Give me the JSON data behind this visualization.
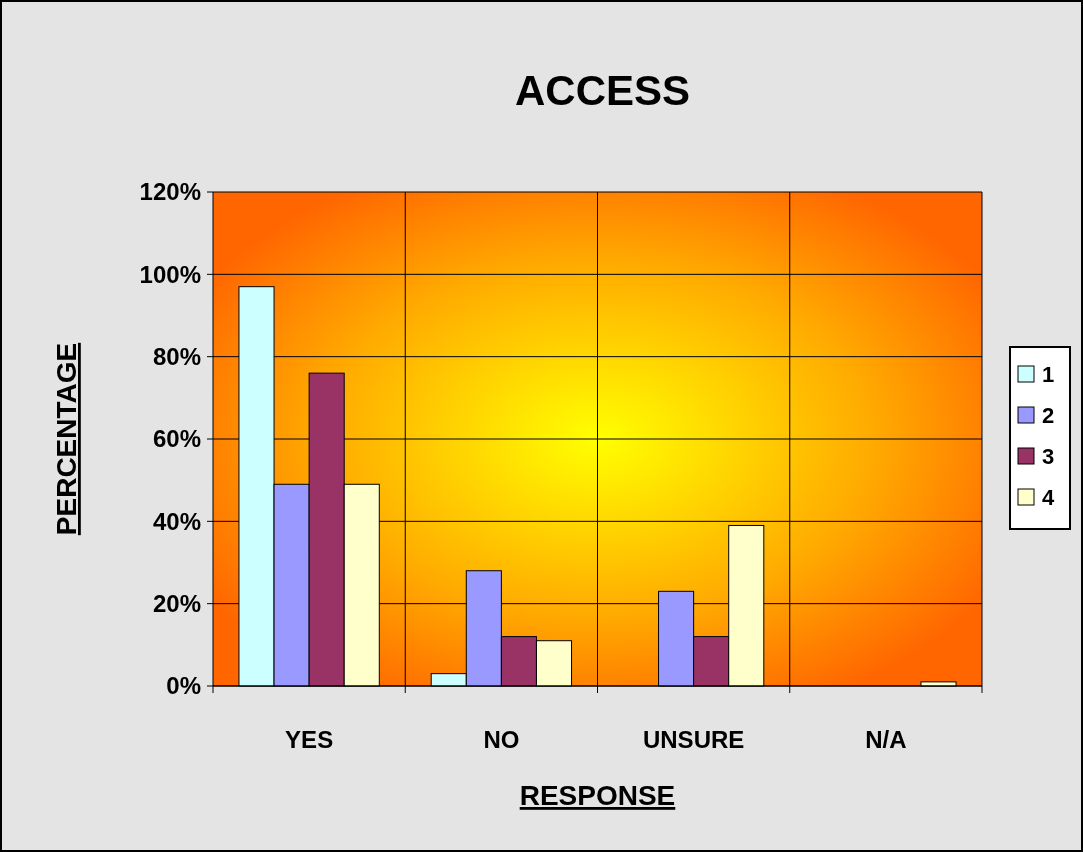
{
  "chart_data": {
    "type": "bar",
    "title": "ACCESS",
    "xlabel": "RESPONSE",
    "ylabel": "PERCENTAGE",
    "categories": [
      "YES",
      "NO",
      "UNSURE",
      "N/A"
    ],
    "series": [
      {
        "name": "1",
        "color": "#ccffff",
        "values": [
          97,
          3,
          0,
          0
        ]
      },
      {
        "name": "2",
        "color": "#9999ff",
        "values": [
          49,
          28,
          23,
          0
        ]
      },
      {
        "name": "3",
        "color": "#993366",
        "values": [
          76,
          12,
          12,
          0
        ]
      },
      {
        "name": "4",
        "color": "#ffffcc",
        "values": [
          49,
          11,
          39,
          1
        ]
      }
    ],
    "ylim": [
      0,
      120
    ],
    "yticks": [
      {
        "value": 0,
        "label": "0%"
      },
      {
        "value": 20,
        "label": "20%"
      },
      {
        "value": 40,
        "label": "40%"
      },
      {
        "value": 60,
        "label": "60%"
      },
      {
        "value": 80,
        "label": "80%"
      },
      {
        "value": 100,
        "label": "100%"
      },
      {
        "value": 120,
        "label": "120%"
      }
    ],
    "grid": true,
    "legend": "right"
  }
}
